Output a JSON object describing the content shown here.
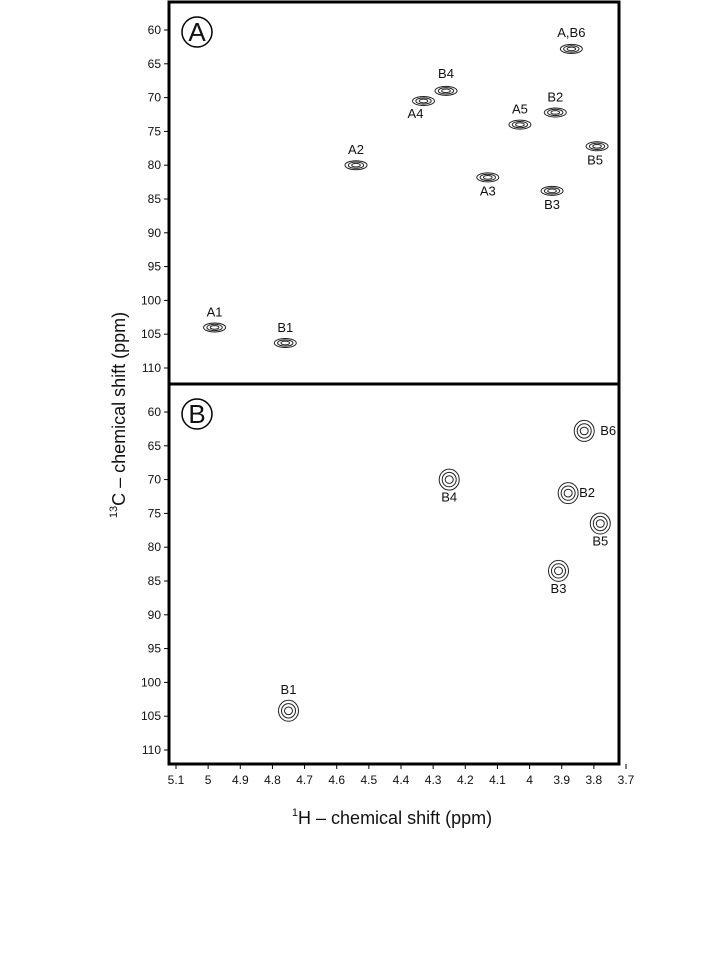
{
  "chart_data": {
    "type": "scatter",
    "xlabel": "H – chemical shift (ppm)",
    "xlabel_superscript": "1",
    "ylabel": "C – chemical shift (ppm)",
    "ylabel_superscript": "13",
    "x_reversed": true,
    "xlim": [
      5.1,
      3.65
    ],
    "x_ticks": [
      "5.1",
      "5",
      "4.9",
      "4.8",
      "4.7",
      "4.6",
      "4.5",
      "4.4",
      "4.3",
      "4.2",
      "4.1",
      "4",
      "3.9",
      "3.8",
      "3.7"
    ],
    "panels": [
      {
        "letter": "A",
        "ylim": [
          57,
          112
        ],
        "y_ticks": [
          "60",
          "65",
          "70",
          "75",
          "80",
          "85",
          "90",
          "95",
          "100",
          "105",
          "110"
        ],
        "peaks": [
          {
            "label": "A1",
            "x": 4.98,
            "y": 104.0
          },
          {
            "label": "B1",
            "x": 4.76,
            "y": 106.3
          },
          {
            "label": "A2",
            "x": 4.54,
            "y": 80.0
          },
          {
            "label": "A4",
            "x": 4.33,
            "y": 70.5
          },
          {
            "label": "B4",
            "x": 4.26,
            "y": 69.0
          },
          {
            "label": "A3",
            "x": 4.13,
            "y": 81.8
          },
          {
            "label": "A5",
            "x": 4.03,
            "y": 74.0
          },
          {
            "label": "B2",
            "x": 3.92,
            "y": 72.2
          },
          {
            "label": "B3",
            "x": 3.93,
            "y": 83.8
          },
          {
            "label": "A,B6",
            "x": 3.87,
            "y": 62.8
          },
          {
            "label": "B5",
            "x": 3.79,
            "y": 77.2
          }
        ]
      },
      {
        "letter": "B",
        "ylim": [
          57,
          112
        ],
        "y_ticks": [
          "60",
          "65",
          "70",
          "75",
          "80",
          "85",
          "90",
          "95",
          "100",
          "105",
          "110"
        ],
        "peaks": [
          {
            "label": "B1",
            "x": 4.75,
            "y": 104.2
          },
          {
            "label": "B4",
            "x": 4.25,
            "y": 70.0
          },
          {
            "label": "B2",
            "x": 3.88,
            "y": 72.0
          },
          {
            "label": "B3",
            "x": 3.91,
            "y": 83.5
          },
          {
            "label": "B6",
            "x": 3.83,
            "y": 62.8
          },
          {
            "label": "B5",
            "x": 3.78,
            "y": 76.5
          }
        ]
      }
    ]
  }
}
